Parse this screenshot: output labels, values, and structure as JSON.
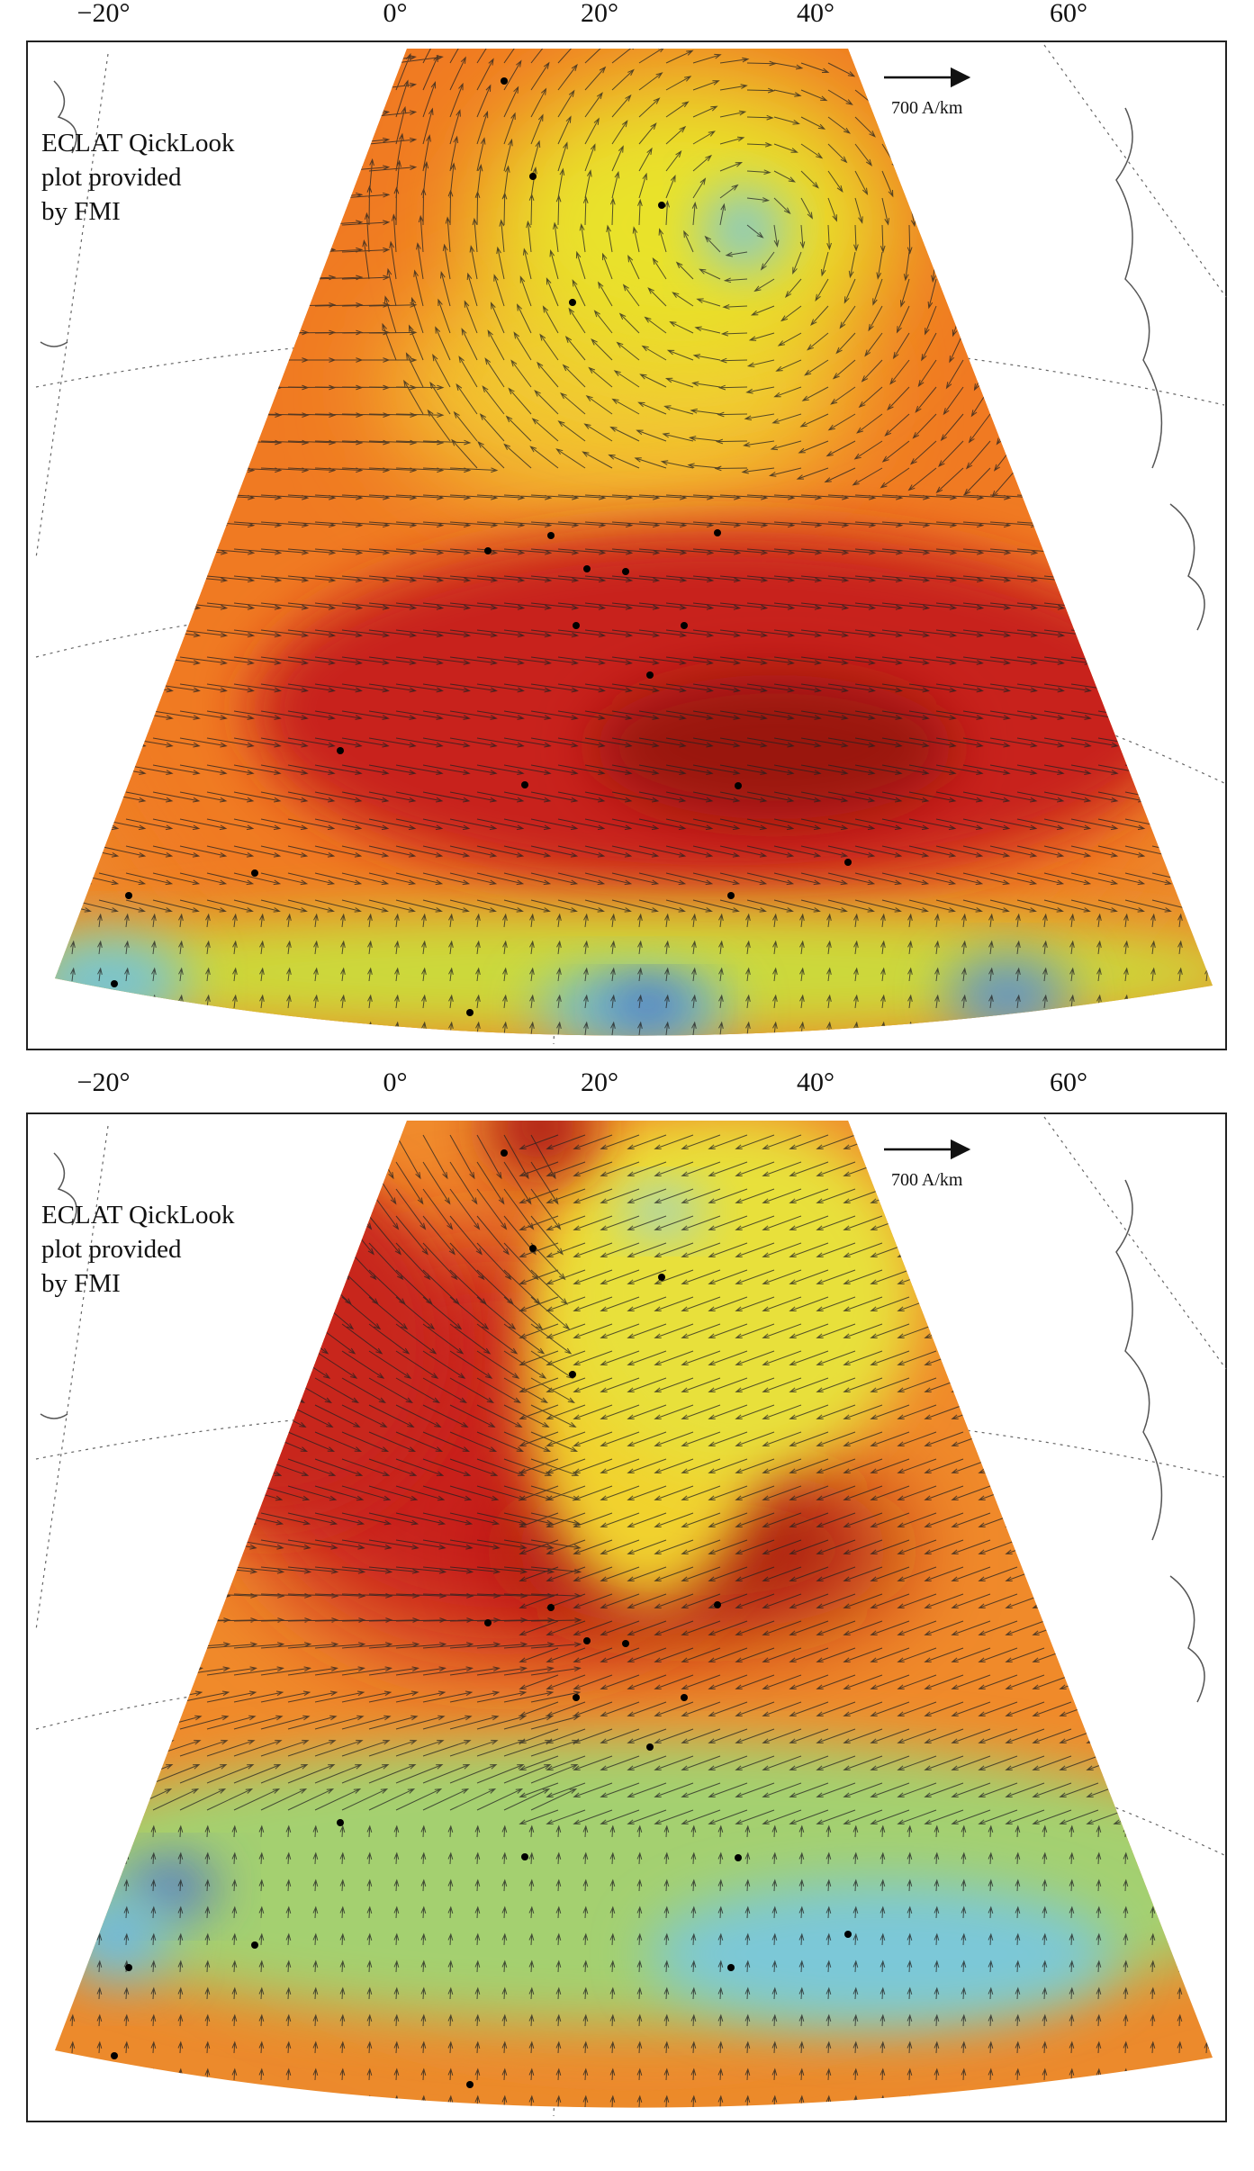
{
  "panels": [
    {
      "lon_labels": [
        "−20°",
        "0°",
        "20°",
        "40°",
        "60°"
      ],
      "scale_label": "700 A/km",
      "caption": [
        "ECLAT QickLook",
        "plot provided",
        "by FMI"
      ]
    },
    {
      "lon_labels": [
        "−20°",
        "0°",
        "20°",
        "40°",
        "60°"
      ],
      "scale_label": "700 A/km",
      "caption": [
        "ECLAT QickLook",
        "plot provided",
        "by FMI"
      ]
    }
  ]
}
